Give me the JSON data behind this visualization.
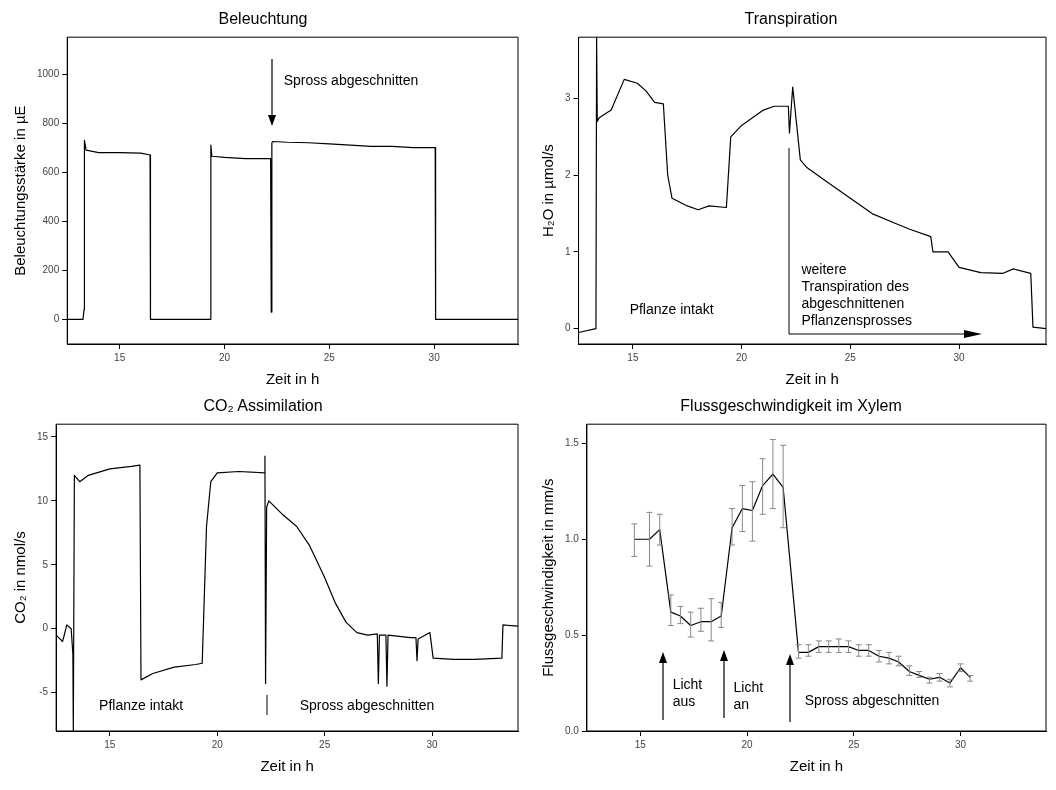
{
  "chart_data": [
    {
      "type": "line",
      "title": "Beleuchtung",
      "xlabel": "Zeit in h",
      "ylabel": "Beleuchtungsstärke in µE",
      "xlim": [
        12.5,
        34
      ],
      "ylim": [
        -100,
        1150
      ],
      "xticks": [
        15,
        20,
        25,
        30
      ],
      "yticks": [
        0,
        200,
        400,
        600,
        800,
        1000
      ],
      "grid": false,
      "legend": false,
      "marker": "none",
      "series": [
        {
          "color": "#000000",
          "x": [
            12.5,
            13.25,
            13.3,
            13.32,
            13.4,
            14,
            15,
            16,
            16.45,
            16.47,
            17,
            18,
            19,
            19.33,
            19.35,
            19.4,
            20,
            21,
            22.2,
            22.23,
            22.26,
            22.3,
            23,
            24,
            25,
            26,
            27,
            28,
            29,
            30.05,
            30.07,
            31,
            32,
            33,
            34
          ],
          "values": [
            0,
            0,
            40,
            730,
            690,
            680,
            680,
            678,
            670,
            0,
            0,
            0,
            0,
            0,
            710,
            665,
            660,
            655,
            655,
            30,
            720,
            725,
            722,
            720,
            715,
            710,
            705,
            705,
            700,
            700,
            0,
            0,
            0,
            0,
            0
          ]
        }
      ],
      "annotations": [
        "Spross abgeschnitten"
      ]
    },
    {
      "type": "line",
      "title": "Transpiration",
      "xlabel": "Zeit in h",
      "ylabel": "H₂O in µmol/s",
      "xlim": [
        12.5,
        34
      ],
      "ylim": [
        -0.2,
        3.8
      ],
      "xticks": [
        15,
        20,
        25,
        30
      ],
      "yticks": [
        0,
        1,
        2,
        3
      ],
      "grid": false,
      "legend": false,
      "marker": "none",
      "series": [
        {
          "color": "#000000",
          "x": [
            12.5,
            13.3,
            13.33,
            13.36,
            13.45,
            14,
            14.6,
            15.2,
            15.6,
            16,
            16.4,
            16.6,
            16.8,
            17.5,
            18,
            18.5,
            19.3,
            19.5,
            20,
            20.5,
            21,
            21.5,
            22.15,
            22.2,
            22.35,
            22.7,
            23,
            24,
            25,
            26,
            27,
            27.7,
            28.7,
            28.8,
            29.5,
            30,
            31,
            32,
            32.5,
            33.3,
            33.4,
            34
          ],
          "values": [
            -0.05,
            0,
            3.8,
            2.7,
            2.75,
            2.85,
            3.25,
            3.2,
            3.1,
            2.95,
            2.93,
            2.0,
            1.7,
            1.6,
            1.55,
            1.6,
            1.58,
            2.5,
            2.65,
            2.75,
            2.85,
            2.9,
            2.9,
            2.55,
            3.15,
            2.2,
            2.1,
            1.9,
            1.7,
            1.5,
            1.38,
            1.3,
            1.2,
            1.0,
            1.0,
            0.8,
            0.73,
            0.72,
            0.78,
            0.72,
            0.02,
            0.0
          ]
        }
      ],
      "annotations": [
        "Pflanze intakt",
        "weitere\nTranspiration des\nabgeschnittenen\nPflanzensprosses"
      ]
    },
    {
      "type": "line",
      "title": "CO₂ Assimilation",
      "xlabel": "Zeit in h",
      "ylabel": "CO₂ in nmol/s",
      "xlim": [
        12.5,
        34
      ],
      "ylim": [
        -8,
        16
      ],
      "xticks": [
        15,
        20,
        25,
        30
      ],
      "yticks": [
        -5,
        0,
        5,
        10,
        15
      ],
      "grid": false,
      "legend": false,
      "marker": "none",
      "series": [
        {
          "color": "#000000",
          "x": [
            12.5,
            12.8,
            13.0,
            13.2,
            13.28,
            13.3,
            13.35,
            13.6,
            14,
            15,
            16,
            16.4,
            16.45,
            17,
            18,
            19,
            19.3,
            19.5,
            19.7,
            20,
            21,
            22.2,
            22.22,
            22.25,
            22.3,
            22.4,
            23,
            23.7,
            24.3,
            25,
            25.5,
            26,
            26.5,
            27,
            27.45,
            27.5,
            27.55,
            27.85,
            27.9,
            27.95,
            29,
            29.25,
            29.3,
            29.35,
            29.9,
            30.05,
            31,
            32,
            33.25,
            33.3,
            34
          ],
          "values": [
            -0.5,
            -1,
            0.3,
            0,
            -2,
            -8,
            12,
            11.5,
            12,
            12.5,
            12.7,
            12.8,
            -4,
            -3.5,
            -3,
            -2.8,
            -2.7,
            8,
            11.5,
            12.2,
            12.3,
            12.2,
            13.5,
            -4.3,
            9.5,
            10,
            9,
            8,
            6.5,
            4,
            2,
            0.5,
            -0.3,
            -0.5,
            -0.4,
            -4.3,
            -0.5,
            -0.5,
            -4.5,
            -0.5,
            -0.7,
            -0.7,
            -2.5,
            -0.8,
            -0.3,
            -2.3,
            -2.4,
            -2.4,
            -2.3,
            0.3,
            0.2
          ]
        }
      ],
      "annotations": [
        "Pflanze intakt",
        "Spross abgeschnitten"
      ]
    },
    {
      "type": "line",
      "title": "Flussgeschwindigkeit im Xylem",
      "xlabel": "Zeit in h",
      "ylabel": "Flussgeschwindigkeit in mm/s",
      "xlim": [
        12.5,
        34
      ],
      "ylim": [
        0,
        1.6
      ],
      "xticks": [
        15,
        20,
        25,
        30
      ],
      "yticks": [
        {
          "value": 0,
          "label": "0.0"
        },
        {
          "value": 0.5,
          "label": "0.5"
        },
        {
          "value": 1,
          "label": "1.0"
        },
        {
          "value": 1.5,
          "label": "1.5"
        }
      ],
      "grid": false,
      "legend": false,
      "marker": "none",
      "series": [
        {
          "color": "#000000",
          "x": [
            14.72,
            15.43,
            15.91,
            16.43,
            16.88,
            17.36,
            17.84,
            18.32,
            18.79,
            19.3,
            19.78,
            20.25,
            20.73,
            21.21,
            21.69,
            22.41,
            22.87,
            23.36,
            23.82,
            24.3,
            24.75,
            25.23,
            25.7,
            26.18,
            26.65,
            27.1,
            27.6,
            28.06,
            28.54,
            29.02,
            29.5,
            30.0,
            30.45
          ],
          "values": [
            1.0,
            1.0,
            1.05,
            0.62,
            0.6,
            0.55,
            0.57,
            0.57,
            0.6,
            1.06,
            1.16,
            1.15,
            1.28,
            1.34,
            1.27,
            0.41,
            0.41,
            0.44,
            0.44,
            0.44,
            0.44,
            0.42,
            0.42,
            0.39,
            0.38,
            0.36,
            0.31,
            0.29,
            0.27,
            0.28,
            0.25,
            0.33,
            0.28
          ],
          "errors": [
            [
              0.91,
              1.08
            ],
            [
              0.86,
              1.14
            ],
            [
              0.97,
              1.13
            ],
            [
              0.55,
              0.71
            ],
            [
              0.56,
              0.65
            ],
            [
              0.49,
              0.62
            ],
            [
              0.52,
              0.64
            ],
            [
              0.47,
              0.69
            ],
            [
              0.54,
              0.67
            ],
            [
              0.97,
              1.16
            ],
            [
              1.04,
              1.28
            ],
            [
              0.99,
              1.3
            ],
            [
              1.13,
              1.42
            ],
            [
              1.16,
              1.52
            ],
            [
              1.06,
              1.49
            ],
            [
              0.38,
              0.45
            ],
            [
              0.39,
              0.45
            ],
            [
              0.41,
              0.47
            ],
            [
              0.41,
              0.47
            ],
            [
              0.41,
              0.48
            ],
            [
              0.41,
              0.47
            ],
            [
              0.39,
              0.45
            ],
            [
              0.39,
              0.45
            ],
            [
              0.36,
              0.42
            ],
            [
              0.35,
              0.41
            ],
            [
              0.34,
              0.39
            ],
            [
              0.29,
              0.34
            ],
            [
              0.28,
              0.31
            ],
            [
              0.25,
              0.28
            ],
            [
              0.26,
              0.3
            ],
            [
              0.23,
              0.27
            ],
            [
              0.31,
              0.35
            ],
            [
              0.26,
              0.29
            ]
          ]
        }
      ],
      "annotations": [
        "Licht\naus",
        "Licht\nan",
        "Spross abgeschnitten"
      ]
    }
  ]
}
